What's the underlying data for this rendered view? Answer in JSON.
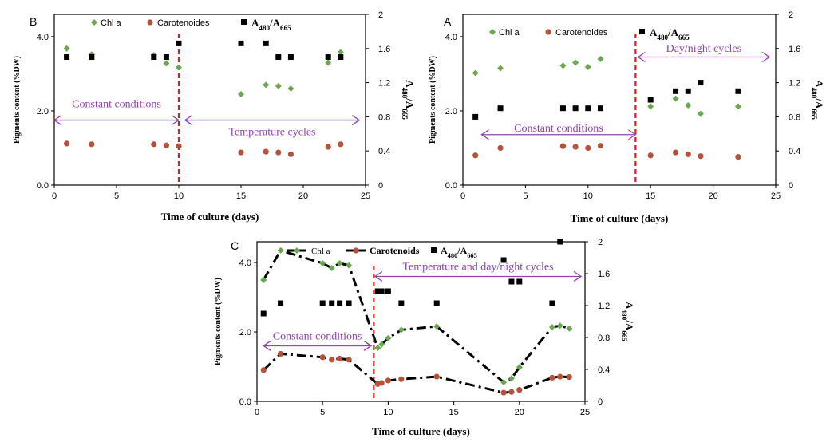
{
  "chart_data": [
    {
      "panel": "B",
      "type": "scatter",
      "xlabel": "Time of culture (days)",
      "ylabel": "Pigments content (%DW)",
      "y2label": "A480/A665",
      "xlim": [
        0,
        25
      ],
      "ylim": [
        0,
        4.6
      ],
      "y2lim": [
        0,
        2
      ],
      "xticks": [
        "0",
        "5",
        "10",
        "15",
        "20",
        "25"
      ],
      "yticks": [
        "0.0",
        "2.0",
        "4.0"
      ],
      "y2ticks": [
        "0",
        "0.4",
        "0.8",
        "1.2",
        "1.6",
        "2"
      ],
      "legend": [
        "Chl a",
        "Carotenoides",
        "A480/A665"
      ],
      "divider_x": 10,
      "annotations": [
        {
          "text": "Constant conditions",
          "x_from": 0,
          "x_to": 10,
          "y": 1.75,
          "label_y": 2.2
        },
        {
          "text": "Temperature cycles",
          "x_from": 10.5,
          "x_to": 24.5,
          "y": 1.75,
          "label_y": 1.45
        }
      ],
      "series": [
        {
          "name": "Chl a",
          "axis": "left",
          "x": [
            1,
            3,
            8,
            9,
            10,
            15,
            17,
            18,
            19,
            22,
            23
          ],
          "values": [
            3.68,
            3.52,
            3.5,
            3.28,
            3.17,
            2.45,
            2.7,
            2.67,
            2.6,
            3.3,
            3.58
          ]
        },
        {
          "name": "Carotenoides",
          "axis": "left",
          "x": [
            1,
            3,
            8,
            9,
            10,
            15,
            17,
            18,
            19,
            22,
            23
          ],
          "values": [
            1.12,
            1.1,
            1.1,
            1.07,
            1.05,
            0.88,
            0.9,
            0.88,
            0.83,
            1.03,
            1.1
          ]
        },
        {
          "name": "A480/A665",
          "axis": "right",
          "x": [
            1,
            3,
            8,
            9,
            10,
            15,
            17,
            18,
            19,
            22,
            23
          ],
          "values": [
            1.5,
            1.5,
            1.5,
            1.5,
            1.66,
            1.66,
            1.66,
            1.5,
            1.5,
            1.5,
            1.5
          ]
        }
      ]
    },
    {
      "panel": "A",
      "type": "scatter",
      "xlabel": "Time of culture (days)",
      "ylabel": "Pigments content (%DW)",
      "y2label": "A480/A665",
      "xlim": [
        0,
        25
      ],
      "ylim": [
        0,
        4.6
      ],
      "y2lim": [
        0,
        2
      ],
      "xticks": [
        "0",
        "5",
        "10",
        "15",
        "20",
        "25"
      ],
      "yticks": [
        "0.0",
        "2.0",
        "4.0"
      ],
      "y2ticks": [
        "0",
        "0.4",
        "0.8",
        "1.2",
        "1.6",
        "2"
      ],
      "legend": [
        "Chl a",
        "Carotenoides",
        "A480/A665"
      ],
      "divider_x": 13.8,
      "annotations": [
        {
          "text": "Constant conditions",
          "x_from": 1.5,
          "x_to": 13.8,
          "y": 1.36,
          "label_y": 1.55
        },
        {
          "text": "Day/night cycles",
          "x_from": 14,
          "x_to": 24.5,
          "y": 3.45,
          "label_y": 3.7
        }
      ],
      "series": [
        {
          "name": "Chl a",
          "axis": "left",
          "x": [
            1,
            3,
            8,
            9,
            10,
            11,
            15,
            17,
            18,
            19,
            22
          ],
          "values": [
            3.02,
            3.15,
            3.22,
            3.3,
            3.18,
            3.4,
            2.12,
            2.33,
            2.15,
            1.92,
            2.12
          ]
        },
        {
          "name": "Carotenoides",
          "axis": "left",
          "x": [
            1,
            3,
            8,
            9,
            10,
            11,
            15,
            17,
            18,
            19,
            22
          ],
          "values": [
            0.8,
            1.0,
            1.05,
            1.03,
            1.0,
            1.06,
            0.8,
            0.88,
            0.83,
            0.78,
            0.76
          ]
        },
        {
          "name": "A480/A665",
          "axis": "right",
          "x": [
            1,
            3,
            8,
            9,
            10,
            11,
            15,
            17,
            18,
            19,
            22
          ],
          "values": [
            0.8,
            0.9,
            0.9,
            0.9,
            0.9,
            0.9,
            1.0,
            1.1,
            1.1,
            1.2,
            1.1
          ]
        }
      ]
    },
    {
      "panel": "C",
      "type": "line",
      "xlabel": "Time of culture (days)",
      "ylabel": "Pigments content (%DW)",
      "y2label": "A480/A665",
      "xlim": [
        0,
        25
      ],
      "ylim": [
        0,
        4.6
      ],
      "y2lim": [
        0,
        2
      ],
      "xticks": [
        "0",
        "5",
        "10",
        "15",
        "20",
        "25"
      ],
      "yticks": [
        "0.0",
        "2.0",
        "4.0"
      ],
      "y2ticks": [
        "0",
        "0.4",
        "0.8",
        "1.2",
        "1.6",
        "2"
      ],
      "legend": [
        "Chl a",
        "Carotenoids",
        "A480/A665"
      ],
      "divider_x": 8.9,
      "annotations": [
        {
          "text": "Constant conditions",
          "x_from": 0.5,
          "x_to": 8.7,
          "y": 1.6,
          "label_y": 1.9
        },
        {
          "text": "Temperature and day/night cycles",
          "x_from": 9,
          "x_to": 24.7,
          "y": 3.6,
          "label_y": 3.9
        }
      ],
      "series": [
        {
          "name": "Chl a",
          "axis": "left",
          "x": [
            0.5,
            1.8,
            5,
            5.7,
            6.3,
            7,
            9.2,
            9.5,
            10,
            11,
            13.7,
            18.8,
            19.4,
            20,
            22.5,
            23.1,
            23.8
          ],
          "values": [
            3.5,
            4.35,
            3.98,
            3.84,
            3.98,
            3.92,
            1.54,
            1.64,
            1.82,
            2.06,
            2.16,
            0.55,
            0.66,
            0.98,
            2.14,
            2.18,
            2.1
          ]
        },
        {
          "name": "Carotenoids",
          "axis": "left",
          "x": [
            0.5,
            1.8,
            5,
            5.7,
            6.3,
            7,
            9.2,
            9.5,
            10,
            11,
            13.7,
            18.8,
            19.4,
            20,
            22.5,
            23.1,
            23.8
          ],
          "values": [
            0.9,
            1.37,
            1.27,
            1.2,
            1.23,
            1.2,
            0.5,
            0.53,
            0.6,
            0.64,
            0.71,
            0.25,
            0.27,
            0.33,
            0.68,
            0.71,
            0.7
          ]
        },
        {
          "name": "A480/A665",
          "axis": "right",
          "x": [
            0.5,
            1.8,
            5,
            5.7,
            6.3,
            7,
            9.2,
            9.5,
            10,
            11,
            13.7,
            18.8,
            19.4,
            20,
            22.5,
            23.1
          ],
          "values": [
            1.1,
            1.23,
            1.23,
            1.23,
            1.23,
            1.23,
            1.38,
            1.38,
            1.38,
            1.23,
            1.23,
            1.77,
            1.5,
            1.5,
            1.23,
            2.0
          ]
        }
      ]
    }
  ]
}
